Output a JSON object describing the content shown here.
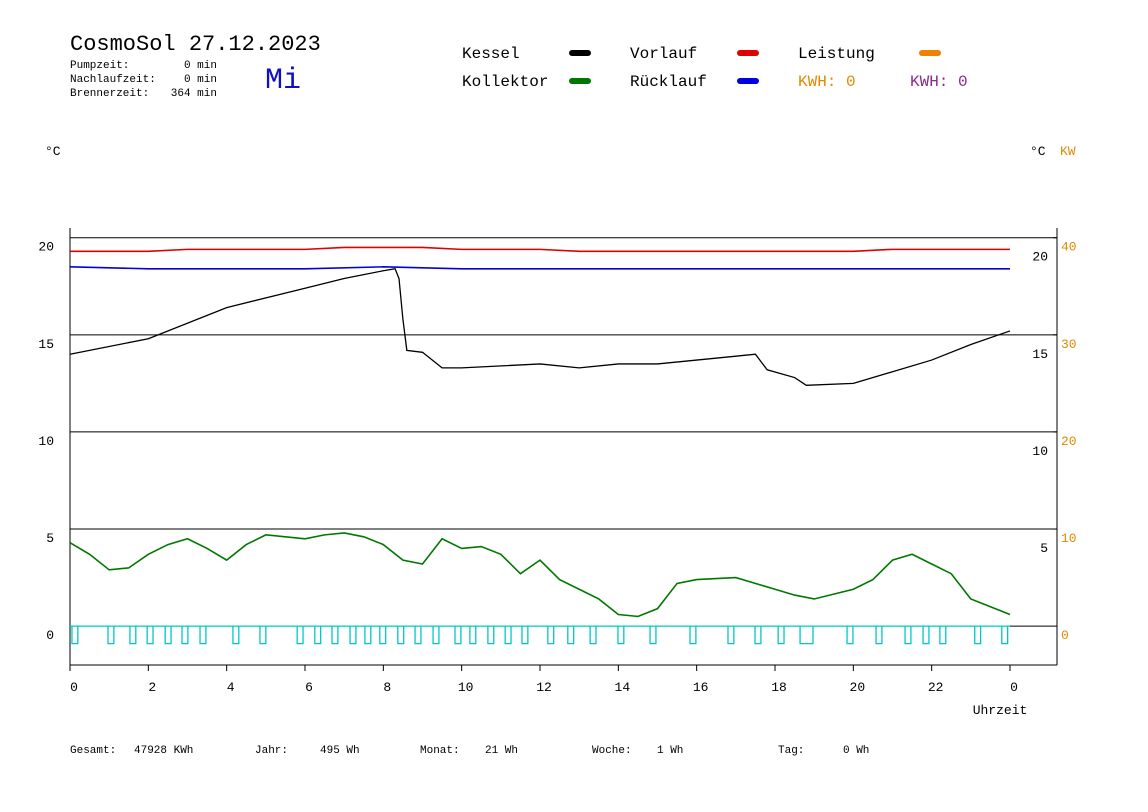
{
  "header": {
    "title": "CosmoSol 27.12.2023",
    "weekday": "Mi",
    "stats": [
      {
        "label": "Pumpzeit:",
        "value": "0 min"
      },
      {
        "label": "Nachlaufzeit:",
        "value": "0 min"
      },
      {
        "label": "Brennerzeit:",
        "value": "364 min"
      }
    ]
  },
  "kwh_labels": [
    {
      "text": "KWH: 0",
      "color": "#e08a00"
    },
    {
      "text": "KWH: 0",
      "color": "#8b2a8b"
    }
  ],
  "footer": [
    {
      "label": "Gesamt:",
      "value": "47928 KWh"
    },
    {
      "label": "Jahr:",
      "value": "495 Wh"
    },
    {
      "label": "Monat:",
      "value": "21 Wh"
    },
    {
      "label": "Woche:",
      "value": "1 Wh"
    },
    {
      "label": "Tag:",
      "value": "0 Wh"
    }
  ],
  "chart_data": {
    "type": "line",
    "ylabel": "°C",
    "y2label": "°C",
    "y2unit": "KW",
    "xlabel": "Uhrzeit",
    "xlim": [
      0,
      25.2
    ],
    "xticks": [
      0,
      2,
      4,
      6,
      8,
      10,
      12,
      14,
      16,
      18,
      20,
      22,
      {
        "value": 24,
        "label": "0"
      }
    ],
    "ylim": [
      -2,
      20.5
    ],
    "yticks": [
      0,
      5,
      10,
      15,
      20
    ],
    "yticks_right": [
      5,
      10,
      15,
      20
    ],
    "grid": true,
    "y2lim": [
      -4,
      41
    ],
    "y2ticks": [
      0,
      10,
      20,
      30,
      40
    ],
    "series": [
      {
        "name": "Kessel",
        "color": "#000000",
        "x": [
          0,
          2,
          4,
          6,
          7,
          8,
          8.3,
          8.4,
          8.5,
          8.6,
          9,
          9.5,
          10,
          12,
          13,
          14,
          15,
          16,
          17,
          17.5,
          17.8,
          18.5,
          18.8,
          20,
          21,
          22,
          23,
          24
        ],
        "values": [
          14.0,
          14.8,
          16.4,
          17.4,
          17.9,
          18.3,
          18.4,
          17.9,
          15.8,
          14.2,
          14.1,
          13.3,
          13.3,
          13.5,
          13.3,
          13.5,
          13.5,
          13.7,
          13.9,
          14.0,
          13.2,
          12.8,
          12.4,
          12.5,
          13.1,
          13.7,
          14.5,
          15.2
        ]
      },
      {
        "name": "Vorlauf",
        "color": "#e00000",
        "x": [
          0,
          1,
          2,
          3,
          4,
          5,
          6,
          7,
          8,
          9,
          10,
          11,
          12,
          13,
          14,
          15,
          16,
          17,
          18,
          19,
          20,
          21,
          22,
          23,
          24
        ],
        "values": [
          19.3,
          19.3,
          19.3,
          19.4,
          19.4,
          19.4,
          19.4,
          19.5,
          19.5,
          19.5,
          19.4,
          19.4,
          19.4,
          19.3,
          19.3,
          19.3,
          19.3,
          19.3,
          19.3,
          19.3,
          19.3,
          19.4,
          19.4,
          19.4,
          19.4
        ]
      },
      {
        "name": "Rücklauf",
        "color": "#0000e0",
        "x": [
          0,
          2,
          4,
          6,
          8,
          10,
          12,
          14,
          16,
          18,
          20,
          22,
          24
        ],
        "values": [
          18.5,
          18.4,
          18.4,
          18.4,
          18.5,
          18.4,
          18.4,
          18.4,
          18.4,
          18.4,
          18.4,
          18.4,
          18.4
        ]
      },
      {
        "name": "Kollektor",
        "color": "#007800",
        "x": [
          0,
          0.5,
          1,
          1.5,
          2,
          2.5,
          3,
          3.5,
          4,
          4.5,
          5,
          6,
          6.5,
          7,
          7.5,
          8,
          8.5,
          9,
          9.5,
          10,
          10.5,
          11,
          11.5,
          12,
          12.5,
          13,
          13.5,
          14,
          14.5,
          15,
          15.5,
          16,
          17,
          18,
          18.5,
          19,
          20,
          20.5,
          21,
          21.5,
          22,
          22.5,
          23,
          23.5,
          24
        ],
        "values": [
          4.3,
          3.7,
          2.9,
          3.0,
          3.7,
          4.2,
          4.5,
          4.0,
          3.4,
          4.2,
          4.7,
          4.5,
          4.7,
          4.8,
          4.6,
          4.2,
          3.4,
          3.2,
          4.5,
          4.0,
          4.1,
          3.7,
          2.7,
          3.4,
          2.4,
          1.9,
          1.4,
          0.6,
          0.5,
          0.9,
          2.2,
          2.4,
          2.5,
          1.9,
          1.6,
          1.4,
          1.9,
          2.4,
          3.4,
          3.7,
          3.2,
          2.7,
          1.4,
          1.0,
          0.6
        ]
      },
      {
        "name": "Leistung",
        "color": "#f08000",
        "axis": "y2",
        "x": [],
        "values": []
      },
      {
        "color": "#00c8c8",
        "type": "pulse",
        "depth": -0.9,
        "x": [
          0.05,
          0.97,
          1.53,
          1.97,
          2.43,
          2.86,
          3.32,
          4.16,
          4.85,
          5.8,
          6.25,
          6.69,
          7.15,
          7.53,
          7.91,
          8.37,
          8.81,
          9.27,
          9.83,
          10.21,
          10.67,
          11.11,
          11.54,
          12.2,
          12.71,
          13.28,
          13.99,
          14.81,
          15.83,
          16.8,
          17.49,
          18.08,
          18.64,
          19.84,
          20.58,
          21.32,
          21.78,
          22.21,
          23.1,
          23.79
        ],
        "x_end": [
          0.2,
          1.12,
          1.68,
          2.12,
          2.58,
          3.01,
          3.47,
          4.31,
          5.0,
          5.95,
          6.4,
          6.84,
          7.3,
          7.68,
          8.06,
          8.52,
          8.96,
          9.42,
          9.98,
          10.36,
          10.82,
          11.26,
          11.69,
          12.35,
          12.86,
          13.43,
          14.14,
          14.96,
          15.98,
          16.95,
          17.64,
          18.23,
          18.97,
          19.99,
          20.73,
          21.47,
          21.93,
          22.36,
          23.25,
          23.94
        ]
      }
    ]
  }
}
